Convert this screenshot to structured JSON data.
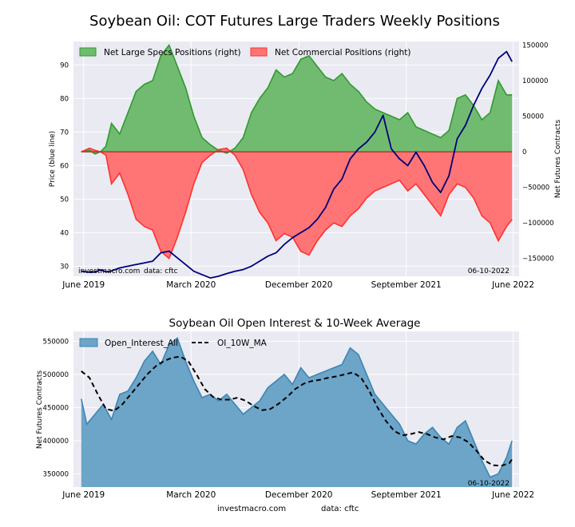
{
  "page": {
    "footer_site": "investmacro.com",
    "footer_data": "data: cftc"
  },
  "chart_data": [
    {
      "type": "area",
      "title": "Soybean Oil: COT Futures Large Traders Weekly Positions",
      "ylabel_left": "Price (blue line)",
      "ylabel_right": "Net Futures Contracts",
      "x_ticks": [
        "June 2019",
        "March 2020",
        "December 2020",
        "September 2021",
        "June 2022"
      ],
      "x_range": [
        "2019-05-15",
        "2022-06-25"
      ],
      "ylim_left": [
        27,
        97
      ],
      "yticks_left": [
        30,
        40,
        50,
        60,
        70,
        80,
        90
      ],
      "ylim_right": [
        -175000,
        155000
      ],
      "yticks_right": [
        -150000,
        -100000,
        -50000,
        0,
        50000,
        100000,
        150000
      ],
      "yticks_right_labels": [
        "−150000",
        "−100000",
        "−50000",
        "0",
        "50000",
        "100000",
        "150000"
      ],
      "date_label": "06-10-2022",
      "watermark_site": "investmacro.com",
      "watermark_data": "data: cftc",
      "grid": true,
      "legend_position": "top-left",
      "colors": {
        "specs": "#2e9a2e",
        "specs_fill": "#71bb71",
        "comm": "#ff3030",
        "comm_fill": "#ff7575",
        "price": "#00007a",
        "price_overlap": "#500040",
        "bg": "#eaeaf2"
      },
      "series": [
        {
          "name": "Net Large Specs Positions (right)",
          "axis": "right",
          "x": [
            "2019-06-04",
            "2019-06-25",
            "2019-07-09",
            "2019-07-23",
            "2019-08-06",
            "2019-08-20",
            "2019-09-10",
            "2019-10-01",
            "2019-10-22",
            "2019-11-12",
            "2019-12-03",
            "2019-12-24",
            "2020-01-14",
            "2020-02-04",
            "2020-02-25",
            "2020-03-17",
            "2020-04-07",
            "2020-04-28",
            "2020-05-19",
            "2020-06-09",
            "2020-06-30",
            "2020-07-21",
            "2020-08-11",
            "2020-09-01",
            "2020-09-22",
            "2020-10-13",
            "2020-11-03",
            "2020-11-24",
            "2020-12-15",
            "2021-01-05",
            "2021-01-26",
            "2021-02-16",
            "2021-03-09",
            "2021-03-30",
            "2021-04-20",
            "2021-05-11",
            "2021-06-01",
            "2021-06-22",
            "2021-07-13",
            "2021-08-03",
            "2021-08-24",
            "2021-09-14",
            "2021-10-05",
            "2021-10-26",
            "2021-11-16",
            "2021-12-07",
            "2021-12-28",
            "2022-01-18",
            "2022-02-08",
            "2022-03-01",
            "2022-03-22",
            "2022-04-12",
            "2022-05-03",
            "2022-05-24",
            "2022-06-07"
          ],
          "values": [
            0,
            2000,
            -3000,
            0,
            8000,
            40000,
            25000,
            55000,
            85000,
            95000,
            100000,
            135000,
            150000,
            120000,
            90000,
            50000,
            20000,
            10000,
            2000,
            -2000,
            5000,
            20000,
            55000,
            75000,
            90000,
            115000,
            105000,
            110000,
            130000,
            135000,
            120000,
            105000,
            100000,
            110000,
            95000,
            85000,
            70000,
            60000,
            55000,
            50000,
            45000,
            55000,
            35000,
            30000,
            25000,
            20000,
            30000,
            75000,
            80000,
            65000,
            45000,
            55000,
            100000,
            80000,
            80000
          ]
        },
        {
          "name": "Net Commercial Positions (right)",
          "axis": "right",
          "x": [
            "2019-06-04",
            "2019-06-25",
            "2019-07-09",
            "2019-07-23",
            "2019-08-06",
            "2019-08-20",
            "2019-09-10",
            "2019-10-01",
            "2019-10-22",
            "2019-11-12",
            "2019-12-03",
            "2019-12-24",
            "2020-01-14",
            "2020-02-04",
            "2020-02-25",
            "2020-03-17",
            "2020-04-07",
            "2020-04-28",
            "2020-05-19",
            "2020-06-09",
            "2020-06-30",
            "2020-07-21",
            "2020-08-11",
            "2020-09-01",
            "2020-09-22",
            "2020-10-13",
            "2020-11-03",
            "2020-11-24",
            "2020-12-15",
            "2021-01-05",
            "2021-01-26",
            "2021-02-16",
            "2021-03-09",
            "2021-03-30",
            "2021-04-20",
            "2021-05-11",
            "2021-06-01",
            "2021-06-22",
            "2021-07-13",
            "2021-08-03",
            "2021-08-24",
            "2021-09-14",
            "2021-10-05",
            "2021-10-26",
            "2021-11-16",
            "2021-12-07",
            "2021-12-28",
            "2022-01-18",
            "2022-02-08",
            "2022-03-01",
            "2022-03-22",
            "2022-04-12",
            "2022-05-03",
            "2022-05-24",
            "2022-06-07"
          ],
          "values": [
            0,
            5000,
            2000,
            0,
            -5000,
            -45000,
            -30000,
            -60000,
            -95000,
            -105000,
            -110000,
            -140000,
            -150000,
            -120000,
            -85000,
            -45000,
            -15000,
            -5000,
            3000,
            5000,
            -5000,
            -25000,
            -60000,
            -85000,
            -100000,
            -125000,
            -115000,
            -120000,
            -140000,
            -145000,
            -125000,
            -110000,
            -100000,
            -105000,
            -90000,
            -80000,
            -65000,
            -55000,
            -50000,
            -45000,
            -40000,
            -55000,
            -45000,
            -60000,
            -75000,
            -90000,
            -60000,
            -45000,
            -50000,
            -65000,
            -90000,
            -100000,
            -125000,
            -105000,
            -95000
          ]
        },
        {
          "name": "Price",
          "axis": "left",
          "x": [
            "2019-06-04",
            "2019-06-25",
            "2019-07-09",
            "2019-07-23",
            "2019-08-06",
            "2019-08-20",
            "2019-09-10",
            "2019-10-01",
            "2019-10-22",
            "2019-11-12",
            "2019-12-03",
            "2019-12-24",
            "2020-01-14",
            "2020-02-04",
            "2020-02-25",
            "2020-03-17",
            "2020-04-07",
            "2020-04-28",
            "2020-05-19",
            "2020-06-09",
            "2020-06-30",
            "2020-07-21",
            "2020-08-11",
            "2020-09-01",
            "2020-09-22",
            "2020-10-13",
            "2020-11-03",
            "2020-11-24",
            "2020-12-15",
            "2021-01-05",
            "2021-01-26",
            "2021-02-16",
            "2021-03-09",
            "2021-03-30",
            "2021-04-20",
            "2021-05-11",
            "2021-06-01",
            "2021-06-22",
            "2021-07-13",
            "2021-08-03",
            "2021-08-24",
            "2021-09-14",
            "2021-10-05",
            "2021-10-26",
            "2021-11-16",
            "2021-12-07",
            "2021-12-28",
            "2022-01-18",
            "2022-02-08",
            "2022-03-01",
            "2022-03-22",
            "2022-04-12",
            "2022-05-03",
            "2022-05-24",
            "2022-06-07"
          ],
          "values": [
            28.5,
            28.2,
            28.3,
            28.9,
            28.3,
            28.6,
            29.5,
            30,
            30.5,
            31,
            31.5,
            34,
            34.5,
            32.5,
            30.5,
            28.5,
            27.5,
            26.5,
            27,
            27.8,
            28.5,
            29,
            30,
            31.5,
            33,
            34,
            36.5,
            38.5,
            40,
            41.5,
            44,
            47.5,
            53,
            56,
            62,
            65,
            67,
            70,
            75,
            65,
            62,
            60,
            64,
            60,
            55,
            52,
            57,
            68,
            72,
            78,
            83,
            87,
            92,
            94,
            91
          ]
        }
      ]
    },
    {
      "type": "area",
      "title": "Soybean Oil Open Interest & 10-Week Average",
      "ylabel": "Net Futures Contracts",
      "x_ticks": [
        "June 2019",
        "March 2020",
        "December 2020",
        "September 2021",
        "June 2022"
      ],
      "x_range": [
        "2019-05-15",
        "2022-06-25"
      ],
      "ylim": [
        330000,
        565000
      ],
      "yticks": [
        350000,
        400000,
        450000,
        500000,
        550000
      ],
      "date_label": "06-10-2022",
      "grid": true,
      "legend_position": "top-left",
      "colors": {
        "oi": "#3d85b4",
        "oi_fill": "#6ca5c7",
        "ma": "#000000",
        "bg": "#eaeaf2"
      },
      "series": [
        {
          "name": "Open_Interest_All",
          "x": [
            "2019-06-04",
            "2019-06-18",
            "2019-07-09",
            "2019-07-30",
            "2019-08-20",
            "2019-09-10",
            "2019-10-01",
            "2019-10-22",
            "2019-11-12",
            "2019-12-03",
            "2019-12-24",
            "2020-01-14",
            "2020-02-04",
            "2020-02-25",
            "2020-03-17",
            "2020-04-07",
            "2020-04-28",
            "2020-05-19",
            "2020-06-09",
            "2020-06-30",
            "2020-07-21",
            "2020-08-11",
            "2020-09-01",
            "2020-09-22",
            "2020-10-13",
            "2020-11-03",
            "2020-11-24",
            "2020-12-15",
            "2021-01-05",
            "2021-01-26",
            "2021-02-16",
            "2021-03-09",
            "2021-03-30",
            "2021-04-20",
            "2021-05-11",
            "2021-06-01",
            "2021-06-22",
            "2021-07-13",
            "2021-08-03",
            "2021-08-24",
            "2021-09-14",
            "2021-10-05",
            "2021-10-26",
            "2021-11-16",
            "2021-12-07",
            "2021-12-28",
            "2022-01-18",
            "2022-02-08",
            "2022-03-01",
            "2022-03-22",
            "2022-04-12",
            "2022-05-03",
            "2022-05-24",
            "2022-06-07"
          ],
          "values": [
            463000,
            425000,
            440000,
            455000,
            432000,
            470000,
            475000,
            495000,
            520000,
            535000,
            515000,
            545000,
            555000,
            520000,
            490000,
            465000,
            470000,
            460000,
            470000,
            455000,
            440000,
            450000,
            460000,
            480000,
            490000,
            500000,
            485000,
            510000,
            495000,
            500000,
            505000,
            510000,
            515000,
            540000,
            530000,
            500000,
            470000,
            455000,
            440000,
            425000,
            400000,
            395000,
            410000,
            420000,
            405000,
            395000,
            420000,
            430000,
            400000,
            370000,
            345000,
            350000,
            375000,
            400000
          ]
        },
        {
          "name": "OI_10W_MA",
          "x": [
            "2019-06-04",
            "2019-06-25",
            "2019-07-16",
            "2019-08-06",
            "2019-08-27",
            "2019-09-17",
            "2019-10-08",
            "2019-10-29",
            "2019-11-19",
            "2019-12-10",
            "2019-12-31",
            "2020-01-21",
            "2020-02-11",
            "2020-03-03",
            "2020-03-24",
            "2020-04-14",
            "2020-05-05",
            "2020-05-26",
            "2020-06-16",
            "2020-07-07",
            "2020-07-28",
            "2020-08-18",
            "2020-09-08",
            "2020-09-29",
            "2020-10-20",
            "2020-11-10",
            "2020-12-01",
            "2020-12-22",
            "2021-01-12",
            "2021-02-02",
            "2021-02-23",
            "2021-03-16",
            "2021-04-06",
            "2021-04-27",
            "2021-05-18",
            "2021-06-08",
            "2021-06-29",
            "2021-07-20",
            "2021-08-10",
            "2021-08-31",
            "2021-09-21",
            "2021-10-12",
            "2021-11-02",
            "2021-11-23",
            "2021-12-14",
            "2022-01-04",
            "2022-01-25",
            "2022-02-15",
            "2022-03-08",
            "2022-03-29",
            "2022-04-19",
            "2022-05-10",
            "2022-05-31",
            "2022-06-07"
          ],
          "values": [
            505000,
            495000,
            470000,
            448000,
            445000,
            455000,
            470000,
            485000,
            500000,
            512000,
            520000,
            525000,
            527000,
            520000,
            500000,
            478000,
            466000,
            462000,
            462000,
            465000,
            460000,
            452000,
            446000,
            448000,
            456000,
            466000,
            478000,
            486000,
            490000,
            492000,
            495000,
            497000,
            500000,
            503000,
            495000,
            475000,
            450000,
            430000,
            415000,
            408000,
            410000,
            413000,
            410000,
            405000,
            402000,
            407000,
            405000,
            398000,
            385000,
            370000,
            363000,
            362000,
            366000,
            372000
          ]
        }
      ]
    }
  ]
}
